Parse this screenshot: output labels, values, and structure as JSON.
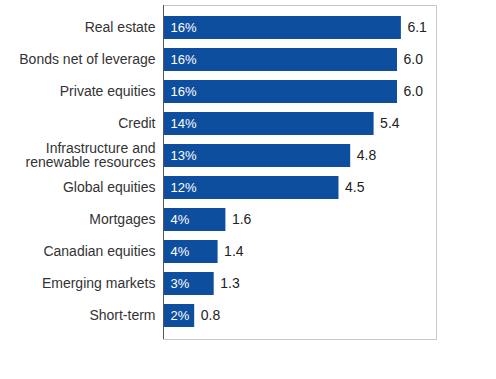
{
  "chart_data": {
    "type": "bar",
    "orientation": "horizontal",
    "categories": [
      "Real estate",
      "Bonds net of leverage",
      "Private equities",
      "Credit",
      "Infrastructure and renewable resources",
      "Global equities",
      "Mortgages",
      "Canadian equities",
      "Emerging markets",
      "Short-term"
    ],
    "values": [
      6.1,
      6.0,
      6.0,
      5.4,
      4.8,
      4.5,
      1.6,
      1.4,
      1.3,
      0.8
    ],
    "value_labels": [
      "6.1",
      "6.0",
      "6.0",
      "5.4",
      "4.8",
      "4.5",
      "1.6",
      "1.4",
      "1.3",
      "0.8"
    ],
    "shares": [
      16,
      16,
      16,
      14,
      13,
      12,
      4,
      4,
      3,
      2
    ],
    "share_labels": [
      "16%",
      "16%",
      "16%",
      "14%",
      "13%",
      "12%",
      "4%",
      "4%",
      "3%",
      "2%"
    ],
    "color": "#0d4f9e",
    "xlim": [
      0,
      7
    ],
    "xticks": [],
    "grid": false,
    "data_labels": true,
    "tick_labels": "y"
  }
}
